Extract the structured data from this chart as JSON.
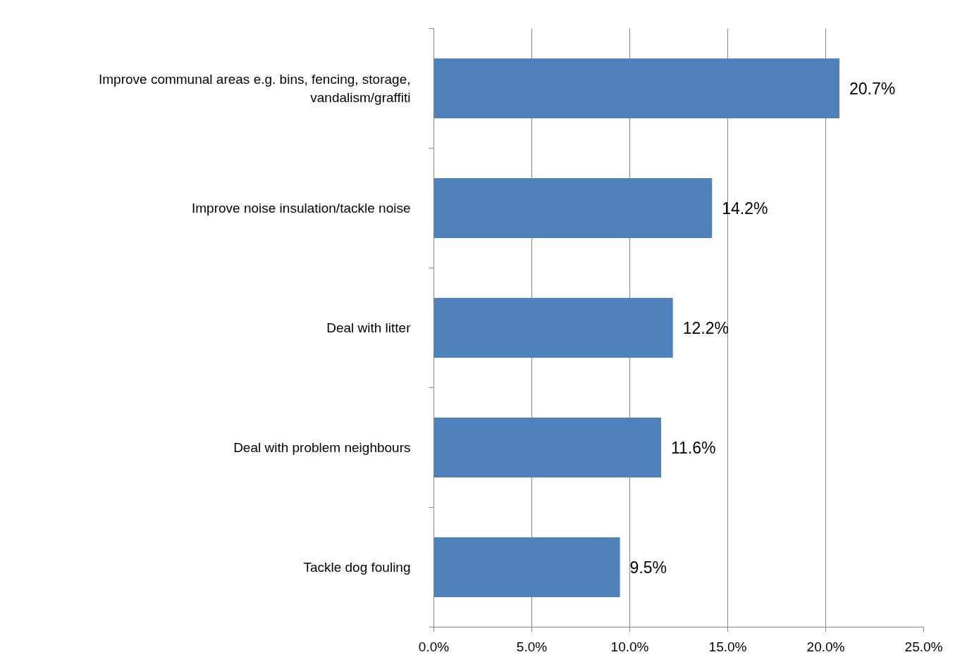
{
  "chart_data": {
    "type": "bar",
    "orientation": "horizontal",
    "categories": [
      "Improve communal areas e.g. bins, fencing, storage, vandalism/graffiti",
      "Improve noise insulation/tackle noise",
      "Deal with litter",
      "Deal with problem neighbours",
      "Tackle dog fouling"
    ],
    "values": [
      20.7,
      14.2,
      12.2,
      11.6,
      9.5
    ],
    "value_labels": [
      "20.7%",
      "14.2%",
      "12.2%",
      "11.6%",
      "9.5%"
    ],
    "color": "#4f81bd",
    "xlim": [
      0,
      25
    ],
    "xticks": [
      {
        "value": 0,
        "label": "0.0%"
      },
      {
        "value": 5,
        "label": "5.0%"
      },
      {
        "value": 10,
        "label": "10.0%"
      },
      {
        "value": 15,
        "label": "15.0%"
      },
      {
        "value": 20,
        "label": "20.0%"
      },
      {
        "value": 25,
        "label": "25.0%"
      }
    ],
    "grid": "x"
  }
}
